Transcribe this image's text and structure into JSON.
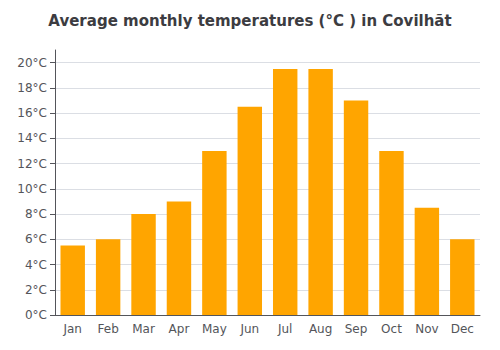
{
  "chart_data": {
    "type": "bar",
    "title": "Average monthly temperatures (°C ) in Covilhãt",
    "categories": [
      "Jan",
      "Feb",
      "Mar",
      "Apr",
      "May",
      "Jun",
      "Jul",
      "Aug",
      "Sep",
      "Oct",
      "Nov",
      "Dec"
    ],
    "values": [
      5.5,
      6.0,
      8.0,
      9.0,
      13.0,
      16.5,
      19.5,
      19.5,
      17.0,
      13.0,
      8.5,
      6.0
    ],
    "color": "#FFA500",
    "ylim": [
      0,
      21
    ],
    "yticks": [
      {
        "value": 0,
        "label": "0°C"
      },
      {
        "value": 2,
        "label": "2°C"
      },
      {
        "value": 4,
        "label": "4°C"
      },
      {
        "value": 6,
        "label": "6°C"
      },
      {
        "value": 8,
        "label": "8°C"
      },
      {
        "value": 10,
        "label": "10°C"
      },
      {
        "value": 12,
        "label": "12°C"
      },
      {
        "value": 14,
        "label": "14°C"
      },
      {
        "value": 16,
        "label": "16°C"
      },
      {
        "value": 18,
        "label": "18°C"
      },
      {
        "value": 20,
        "label": "20°C"
      }
    ],
    "grid": true
  }
}
